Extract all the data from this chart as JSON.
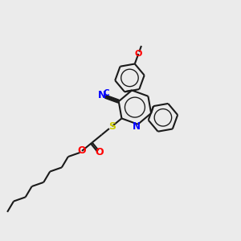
{
  "background_color": "#ebebeb",
  "bond_color": "#1a1a1a",
  "atom_colors": {
    "N": "#0000ff",
    "O": "#ff0000",
    "S": "#cccc00",
    "C": "#0000ff"
  },
  "line_width": 1.5,
  "figsize": [
    3.0,
    3.0
  ],
  "dpi": 100
}
